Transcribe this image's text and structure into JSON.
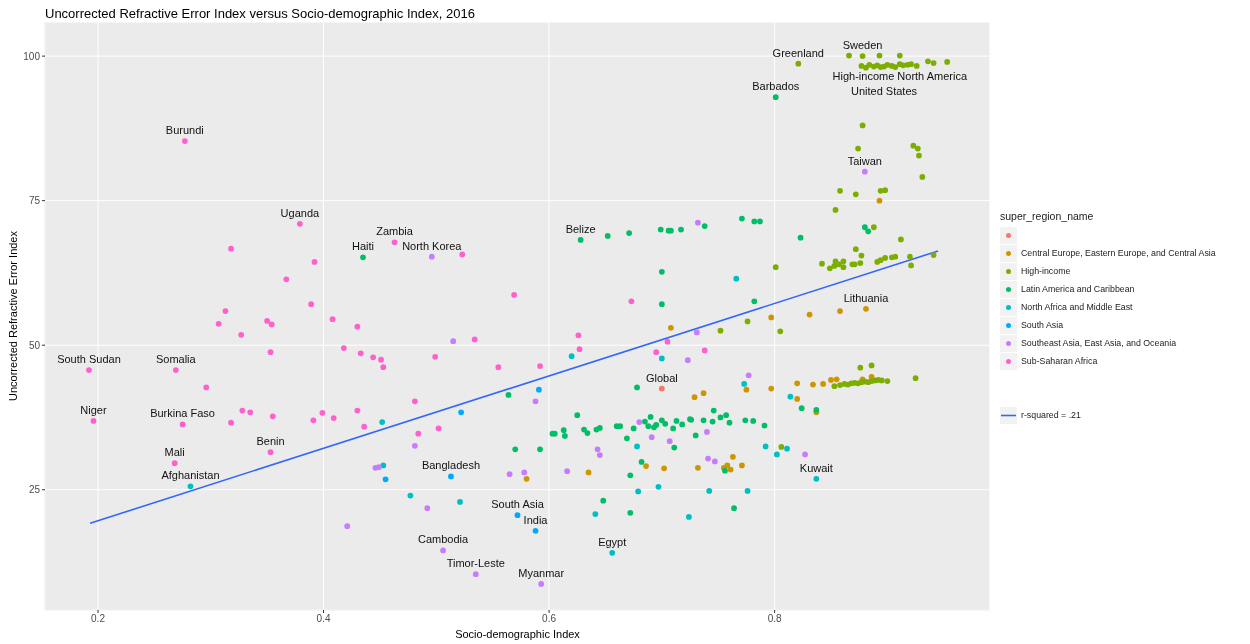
{
  "chart_data": {
    "type": "scatter",
    "title": "Uncorrected Refractive Error Index versus Socio-demographic Index, 2016",
    "xlabel": "Socio-demographic Index",
    "ylabel": "Uncorrected Refractive Error Index",
    "legend_title": "super_region_name",
    "xlim": [
      0.153,
      0.991
    ],
    "xticks": [
      0.2,
      0.4,
      0.6,
      0.8
    ],
    "ylim": [
      4.2,
      105.9
    ],
    "yticks": [
      25,
      50,
      75,
      100
    ],
    "grid": true,
    "legend": "right",
    "marker": "circle",
    "series": [
      {
        "color": "#f8766d",
        "x": [
          0.7
        ],
        "values": [
          42.5
        ]
      },
      {
        "name": "Central Europe, Eastern Europe, and Central Asia",
        "color": "#cd9600",
        "x": [
          0.708,
          0.729,
          0.58,
          0.635,
          0.686,
          0.702,
          0.732,
          0.797,
          0.831,
          0.858,
          0.881,
          0.737,
          0.775,
          0.797,
          0.82,
          0.834,
          0.843,
          0.85,
          0.855,
          0.82,
          0.837,
          0.755,
          0.758,
          0.761,
          0.763,
          0.771,
          0.878,
          0.886,
          0.893
        ],
        "values": [
          53.0,
          41.0,
          26.9,
          28.0,
          29.1,
          28.7,
          28.8,
          54.8,
          55.3,
          55.9,
          56.3,
          41.7,
          42.3,
          42.5,
          43.4,
          43.2,
          43.3,
          44.0,
          44.1,
          40.7,
          38.4,
          28.8,
          29.2,
          28.5,
          30.7,
          29.2,
          44.1,
          44.5,
          75.0
        ]
      },
      {
        "name": "High-income",
        "color": "#7cae00",
        "x": [
          0.878,
          0.866,
          0.893,
          0.911,
          0.821,
          0.877,
          0.881,
          0.884,
          0.888,
          0.891,
          0.894,
          0.897,
          0.9,
          0.904,
          0.907,
          0.911,
          0.914,
          0.918,
          0.921,
          0.926,
          0.936,
          0.941,
          0.953,
          0.878,
          0.874,
          0.923,
          0.927,
          0.928,
          0.931,
          0.858,
          0.872,
          0.894,
          0.898,
          0.854,
          0.888,
          0.912,
          0.872,
          0.877,
          0.842,
          0.854,
          0.861,
          0.869,
          0.849,
          0.853,
          0.857,
          0.861,
          0.871,
          0.876,
          0.891,
          0.894,
          0.898,
          0.904,
          0.907,
          0.92,
          0.921,
          0.941,
          0.801,
          0.776,
          0.805,
          0.752,
          0.876,
          0.886,
          0.925,
          0.858,
          0.862,
          0.865,
          0.868,
          0.871,
          0.874,
          0.877,
          0.88,
          0.883,
          0.886,
          0.889,
          0.892,
          0.895,
          0.853,
          0.9,
          0.806
        ],
        "values": [
          100.0,
          100.1,
          100.1,
          100.1,
          98.7,
          98.3,
          98.0,
          98.5,
          98.2,
          98.4,
          98.1,
          98.2,
          98.5,
          98.3,
          98.1,
          98.6,
          98.4,
          98.5,
          98.6,
          98.3,
          99.1,
          98.8,
          99.0,
          88.0,
          84.0,
          84.5,
          84.0,
          82.8,
          79.1,
          76.7,
          76.1,
          76.7,
          76.8,
          73.4,
          70.4,
          68.3,
          66.6,
          65.5,
          64.1,
          64.5,
          64.5,
          64.0,
          63.3,
          63.7,
          64.0,
          63.5,
          64.0,
          64.2,
          64.4,
          64.7,
          65.1,
          65.2,
          65.3,
          65.3,
          63.8,
          65.6,
          63.5,
          54.1,
          52.4,
          52.5,
          46.1,
          46.5,
          44.3,
          43.1,
          43.3,
          43.2,
          43.4,
          43.5,
          43.4,
          43.6,
          43.7,
          43.6,
          43.8,
          43.9,
          44.0,
          43.9,
          42.9,
          43.8,
          32.4
        ]
      },
      {
        "name": "Latin America and Caribbean",
        "color": "#00be67",
        "x": [
          0.435,
          0.628,
          0.652,
          0.671,
          0.699,
          0.706,
          0.708,
          0.717,
          0.7,
          0.7,
          0.564,
          0.678,
          0.625,
          0.603,
          0.605,
          0.613,
          0.614,
          0.631,
          0.634,
          0.642,
          0.645,
          0.66,
          0.663,
          0.669,
          0.675,
          0.69,
          0.688,
          0.695,
          0.703,
          0.713,
          0.71,
          0.726,
          0.73,
          0.711,
          0.57,
          0.592,
          0.682,
          0.672,
          0.648,
          0.672,
          0.738,
          0.771,
          0.782,
          0.787,
          0.823,
          0.782,
          0.746,
          0.757,
          0.774,
          0.781,
          0.791,
          0.76,
          0.737,
          0.725,
          0.824,
          0.837,
          0.756,
          0.764,
          0.801,
          0.88,
          0.883,
          0.685,
          0.693,
          0.7,
          0.718,
          0.745,
          0.752
        ],
        "values": [
          65.2,
          68.2,
          68.9,
          69.4,
          70.0,
          69.8,
          69.8,
          70.0,
          62.7,
          57.1,
          41.4,
          42.7,
          37.9,
          34.7,
          34.7,
          35.3,
          34.3,
          35.4,
          34.8,
          35.4,
          35.7,
          36.0,
          36.0,
          33.9,
          35.6,
          37.6,
          36.0,
          36.2,
          36.4,
          36.9,
          35.6,
          37.1,
          34.4,
          32.3,
          32.0,
          32.0,
          29.8,
          27.5,
          23.1,
          21.0,
          70.6,
          71.9,
          71.4,
          71.4,
          68.6,
          57.6,
          38.7,
          37.9,
          37.0,
          36.9,
          36.1,
          36.6,
          37.0,
          37.2,
          39.1,
          38.8,
          28.3,
          21.8,
          92.9,
          70.4,
          69.7,
          36.8,
          35.8,
          37.0,
          36.3,
          36.8,
          37.5
        ]
      },
      {
        "name": "North Africa and Middle East",
        "color": "#00bfc4",
        "x": [
          0.282,
          0.452,
          0.453,
          0.477,
          0.521,
          0.62,
          0.7,
          0.679,
          0.697,
          0.641,
          0.724,
          0.678,
          0.656,
          0.766,
          0.773,
          0.814,
          0.792,
          0.802,
          0.811,
          0.837,
          0.776,
          0.742
        ],
        "values": [
          25.6,
          36.7,
          29.2,
          24.0,
          22.9,
          48.1,
          47.7,
          24.7,
          25.5,
          20.8,
          20.3,
          32.5,
          14.1,
          61.5,
          43.3,
          41.1,
          32.5,
          31.1,
          32.1,
          26.9,
          24.8,
          24.8
        ]
      },
      {
        "name": "South Asia",
        "color": "#00a9ff",
        "x": [
          0.455,
          0.513,
          0.522,
          0.572,
          0.588,
          0.591
        ],
        "values": [
          26.8,
          27.3,
          38.4,
          20.6,
          17.9,
          42.3
        ]
      },
      {
        "name": "Southeast Asia, East Asia, and Oceania",
        "color": "#c77cff",
        "x": [
          0.496,
          0.515,
          0.588,
          0.481,
          0.446,
          0.449,
          0.492,
          0.565,
          0.578,
          0.616,
          0.643,
          0.645,
          0.691,
          0.707,
          0.723,
          0.731,
          0.68,
          0.506,
          0.535,
          0.593,
          0.732,
          0.777,
          0.74,
          0.741,
          0.747,
          0.827,
          0.88,
          0.421
        ],
        "values": [
          65.3,
          50.7,
          40.3,
          32.6,
          28.8,
          28.9,
          21.8,
          27.7,
          28.0,
          28.2,
          32.0,
          31.0,
          34.1,
          33.4,
          47.4,
          52.2,
          36.7,
          14.5,
          10.4,
          8.7,
          71.2,
          44.8,
          35.0,
          30.4,
          29.9,
          31.1,
          80.0,
          18.7
        ]
      },
      {
        "name": "Sub-Saharan Africa",
        "color": "#ff61cc",
        "x": [
          0.277,
          0.379,
          0.318,
          0.392,
          0.367,
          0.389,
          0.313,
          0.307,
          0.35,
          0.354,
          0.327,
          0.408,
          0.43,
          0.418,
          0.463,
          0.523,
          0.569,
          0.534,
          0.444,
          0.451,
          0.453,
          0.499,
          0.555,
          0.592,
          0.626,
          0.627,
          0.481,
          0.484,
          0.502,
          0.673,
          0.695,
          0.705,
          0.738,
          0.192,
          0.269,
          0.296,
          0.196,
          0.275,
          0.328,
          0.335,
          0.318,
          0.355,
          0.391,
          0.399,
          0.409,
          0.43,
          0.436,
          0.353,
          0.268,
          0.353,
          0.433
        ],
        "values": [
          85.3,
          71.0,
          66.7,
          64.4,
          61.4,
          57.1,
          55.9,
          53.7,
          54.2,
          53.6,
          51.8,
          54.5,
          53.2,
          49.5,
          67.8,
          65.7,
          58.7,
          51.0,
          47.9,
          47.5,
          46.2,
          48.0,
          46.2,
          46.4,
          51.7,
          49.3,
          40.3,
          34.7,
          35.6,
          57.6,
          48.8,
          50.6,
          49.1,
          45.7,
          45.7,
          42.7,
          36.9,
          36.3,
          38.7,
          38.4,
          36.6,
          37.7,
          37.0,
          38.3,
          37.4,
          38.7,
          35.9,
          31.5,
          29.6,
          48.8,
          48.6
        ]
      },
      {
        "name": "r-squared = .21",
        "type": "line",
        "marker": "none",
        "color": "#3366ff",
        "x": [
          0.193,
          0.945
        ],
        "values": [
          19.2,
          66.3
        ]
      }
    ],
    "annotations": [
      {
        "text": "Sweden",
        "x": 0.878,
        "y": 100.0
      },
      {
        "text": "High-income North America",
        "x": 0.911,
        "y": 98.6
      },
      {
        "text": "United States",
        "x": 0.897,
        "y": 98.2
      },
      {
        "text": "Greenland",
        "x": 0.821,
        "y": 98.7
      },
      {
        "text": "Barbados",
        "x": 0.801,
        "y": 92.9
      },
      {
        "text": "Taiwan",
        "x": 0.88,
        "y": 80.0
      },
      {
        "text": "Lithuania",
        "x": 0.881,
        "y": 56.3
      },
      {
        "text": "Kuwait",
        "x": 0.837,
        "y": 26.9
      },
      {
        "text": "Burundi",
        "x": 0.277,
        "y": 85.3
      },
      {
        "text": "Uganda",
        "x": 0.379,
        "y": 71.0
      },
      {
        "text": "Zambia",
        "x": 0.463,
        "y": 67.8
      },
      {
        "text": "Haiti",
        "x": 0.435,
        "y": 65.2
      },
      {
        "text": "North Korea",
        "x": 0.496,
        "y": 65.3
      },
      {
        "text": "Belize",
        "x": 0.628,
        "y": 68.2
      },
      {
        "text": "South Sudan",
        "x": 0.192,
        "y": 45.7
      },
      {
        "text": "Somalia",
        "x": 0.269,
        "y": 45.7
      },
      {
        "text": "Niger",
        "x": 0.196,
        "y": 36.9
      },
      {
        "text": "Burkina Faso",
        "x": 0.275,
        "y": 36.3
      },
      {
        "text": "Mali",
        "x": 0.268,
        "y": 29.6
      },
      {
        "text": "Benin",
        "x": 0.353,
        "y": 31.5
      },
      {
        "text": "Afghanistan",
        "x": 0.282,
        "y": 25.6
      },
      {
        "text": "Bangladesh",
        "x": 0.513,
        "y": 27.3
      },
      {
        "text": "South Asia",
        "x": 0.572,
        "y": 20.6
      },
      {
        "text": "India",
        "x": 0.588,
        "y": 17.9
      },
      {
        "text": "Cambodia",
        "x": 0.506,
        "y": 14.5
      },
      {
        "text": "Timor-Leste",
        "x": 0.535,
        "y": 10.4
      },
      {
        "text": "Myanmar",
        "x": 0.593,
        "y": 8.7
      },
      {
        "text": "Egypt",
        "x": 0.656,
        "y": 14.1
      },
      {
        "text": "Global",
        "x": 0.7,
        "y": 42.5
      }
    ]
  }
}
